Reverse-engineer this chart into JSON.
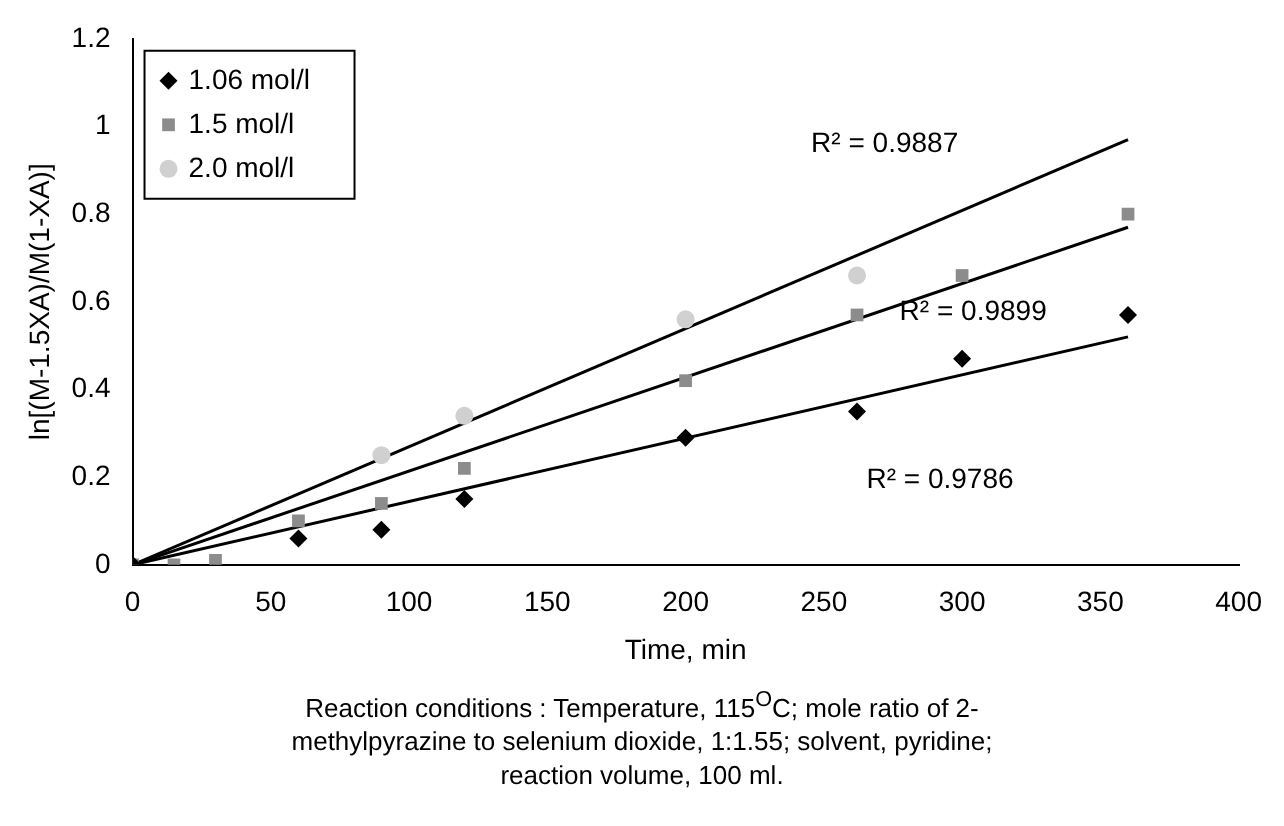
{
  "chart_data": {
    "type": "scatter",
    "xlabel": "Time, min",
    "ylabel": "ln[(M-1.5XA)/M(1-XA)]",
    "xlim": [
      0,
      400
    ],
    "xticks": [
      0,
      50,
      100,
      150,
      200,
      250,
      300,
      350,
      400
    ],
    "ylim": [
      0,
      1.2
    ],
    "yticks": [
      0,
      0.2,
      0.4,
      0.6,
      0.8,
      1,
      1.2
    ],
    "grid": false,
    "legend": "top left",
    "series": [
      {
        "name": "1.06 mol/l",
        "color": "#000000",
        "marker": "diamond",
        "x": [
          0,
          60,
          90,
          120,
          200,
          262,
          300,
          360
        ],
        "values": [
          0,
          0.06,
          0.08,
          0.15,
          0.29,
          0.35,
          0.47,
          0.57
        ]
      },
      {
        "name": "1.5 mol/l",
        "color": "#8c8c8c",
        "marker": "square",
        "x": [
          0,
          15,
          30,
          60,
          90,
          120,
          200,
          262,
          300,
          360
        ],
        "values": [
          0,
          0,
          0.01,
          0.1,
          0.14,
          0.22,
          0.42,
          0.57,
          0.66,
          0.8
        ]
      },
      {
        "name": "2.0 mol/l",
        "color": "#d0d0d0",
        "marker": "circle",
        "x": [
          90,
          120,
          200,
          262
        ],
        "values": [
          0.25,
          0.34,
          0.56,
          0.66
        ]
      },
      {
        "type": "line",
        "color": "#000000",
        "marker": "none",
        "x": [
          0,
          360
        ],
        "values": [
          0,
          0.97
        ]
      },
      {
        "type": "line",
        "color": "#000000",
        "marker": "none",
        "x": [
          0,
          360
        ],
        "values": [
          0,
          0.77
        ]
      },
      {
        "type": "line",
        "color": "#000000",
        "marker": "none",
        "x": [
          0,
          360
        ],
        "values": [
          0,
          0.52
        ]
      }
    ],
    "annotations": [
      "R² = 0.9887",
      "R² = 0.9899",
      "R² = 0.9786",
      "Reaction conditions : Temperature, 115$^{O}$C; mole ratio of 2-methylpyrazine to selenium dioxide, 1:1.55; solvent, pyridine; reaction volume, 100 ml."
    ]
  }
}
